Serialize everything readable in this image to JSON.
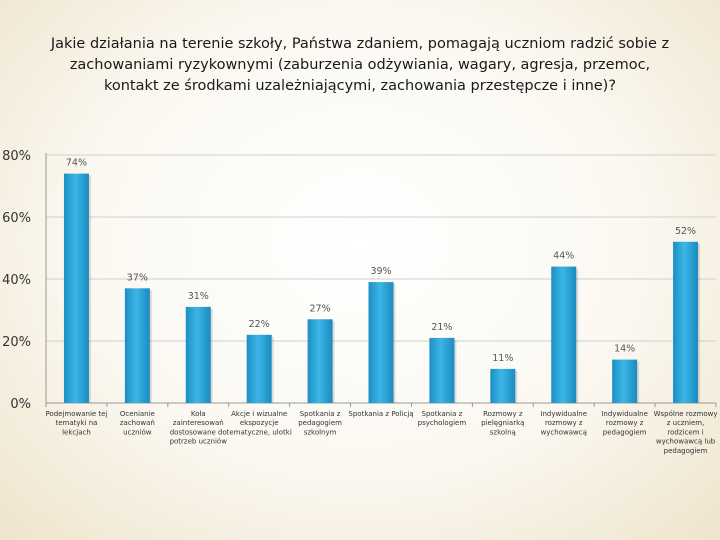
{
  "chart_data": {
    "type": "bar",
    "title_lines": [
      "Jakie działania na terenie szkoły, Państwa zdaniem, pomagają uczniom radzić sobie z",
      "zachowaniami ryzykownymi (zaburzenia odżywiania, wagary, agresja, przemoc,",
      "kontakt ze środkami uzależniającymi, zachowania przestępcze i inne)?"
    ],
    "categories": [
      [
        "Podejmowanie tej",
        "tematyki na",
        "lekcjach"
      ],
      [
        "Ocenianie",
        "zachowań",
        "uczniów"
      ],
      [
        "Koła",
        "zainteresowań",
        "dostosowane do",
        "potrzeb uczniów"
      ],
      [
        "Akcje i wizualne",
        "ekspozycje",
        "tematyczne, ulotki"
      ],
      [
        "Spotkania z",
        "pedagogiem",
        "szkolnym"
      ],
      [
        "Spotkania z Policją"
      ],
      [
        "Spotkania z",
        "psychologiem"
      ],
      [
        "Rozmowy z",
        "pielęgniarką",
        "szkolną"
      ],
      [
        "Indywidualne",
        "rozmowy z",
        "wychowawcą"
      ],
      [
        "Indywidualne",
        "rozmowy z",
        "pedagogiem"
      ],
      [
        "Wspólne rozmowy",
        "z uczniem,",
        "rodzicem i",
        "wychowawcą lub",
        "pedagogiem"
      ]
    ],
    "values": [
      74,
      37,
      31,
      22,
      27,
      39,
      21,
      11,
      44,
      14,
      52
    ],
    "value_labels": [
      "74%",
      "37%",
      "31%",
      "22%",
      "27%",
      "39%",
      "21%",
      "11%",
      "44%",
      "14%",
      "52%"
    ],
    "yticks": [
      0,
      20,
      40,
      60,
      80
    ],
    "ytick_labels": [
      "0%",
      "20%",
      "40%",
      "60%",
      "80%"
    ],
    "ylim": [
      0,
      80
    ],
    "grid": true,
    "bar_color": "#2aa3d8",
    "xlabel": "",
    "ylabel": ""
  }
}
